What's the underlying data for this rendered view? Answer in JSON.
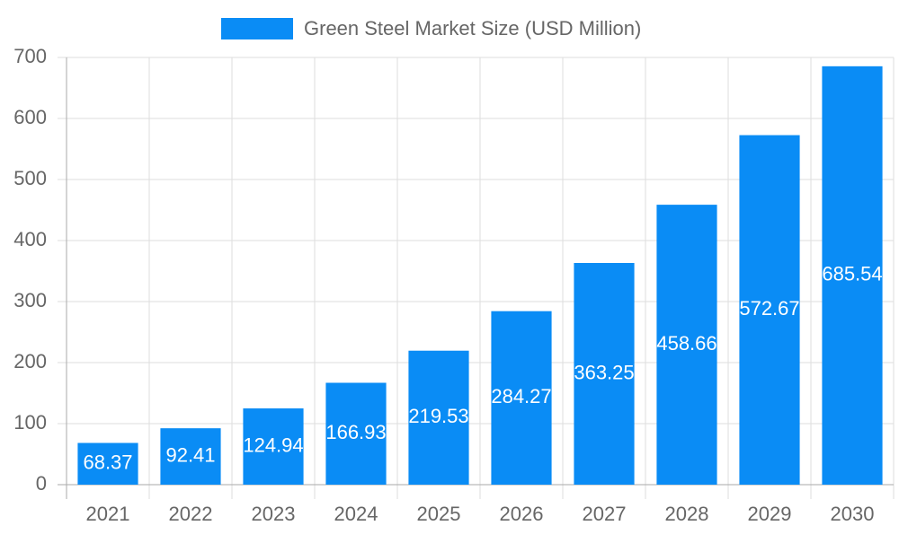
{
  "chart_data": {
    "type": "bar",
    "categories": [
      "2021",
      "2022",
      "2023",
      "2024",
      "2025",
      "2026",
      "2027",
      "2028",
      "2029",
      "2030"
    ],
    "series": [
      {
        "name": "Green Steel Market Size (USD Million)",
        "color": "#0a8cf5",
        "values": [
          68.37,
          92.41,
          124.94,
          166.93,
          219.53,
          284.27,
          363.25,
          458.66,
          572.67,
          685.54
        ]
      }
    ],
    "ylim": [
      0,
      700
    ],
    "yticks": [
      0,
      100,
      200,
      300,
      400,
      500,
      600,
      700
    ],
    "grid": true,
    "legend": "top"
  }
}
